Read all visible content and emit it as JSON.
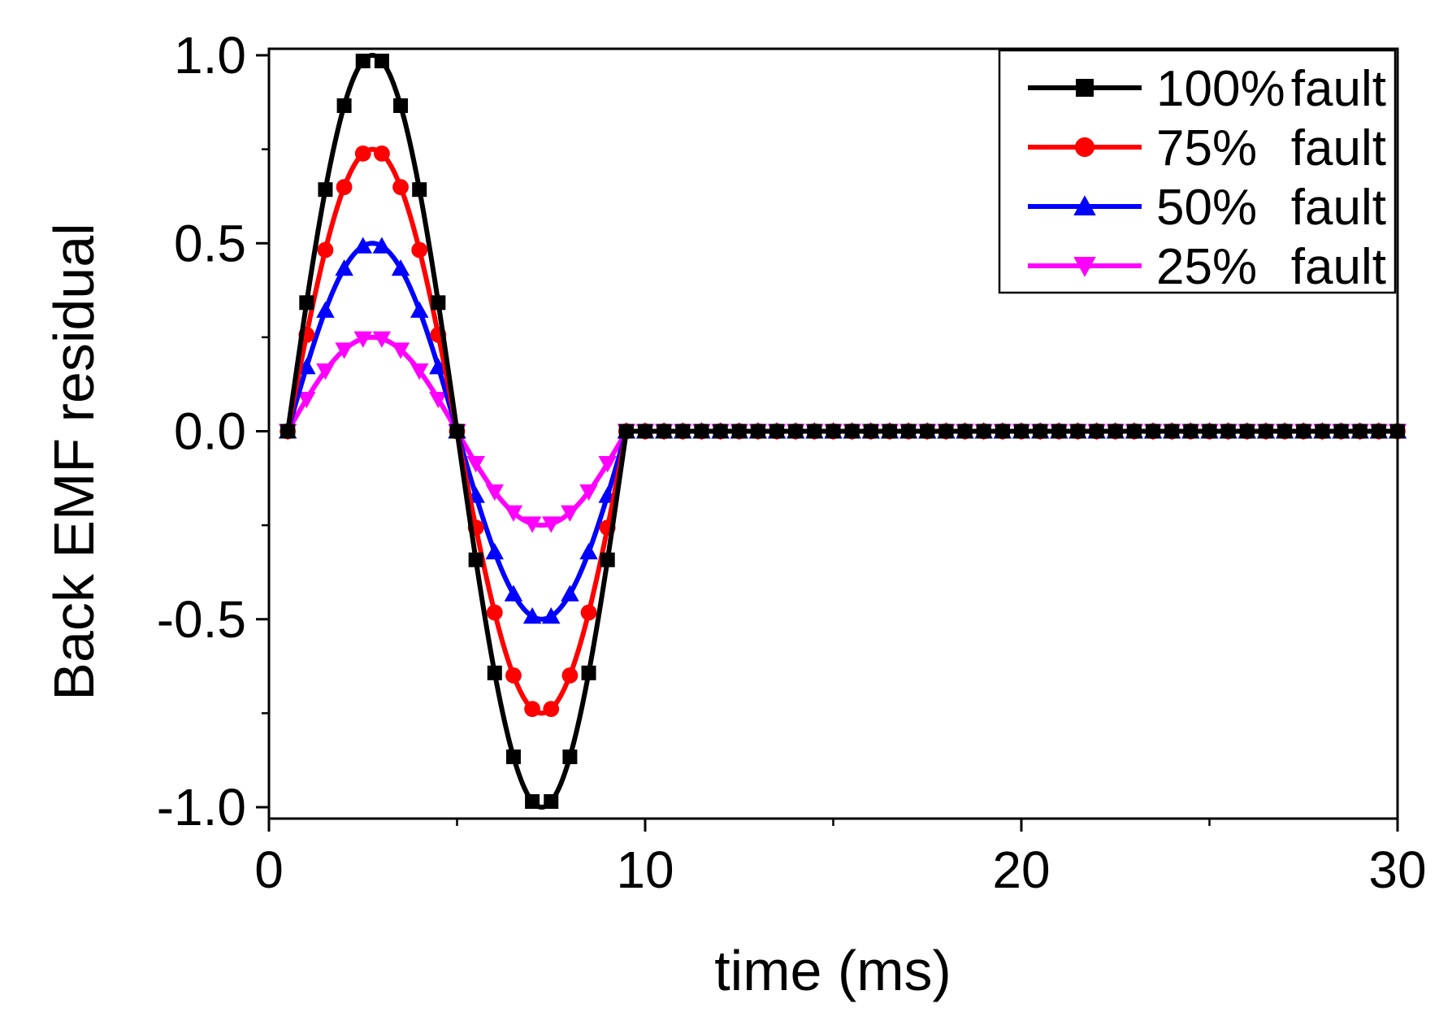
{
  "chart_data": {
    "type": "line",
    "title": "",
    "xlabel": "time (ms)",
    "ylabel": "Back EMF residual",
    "xlim": [
      0,
      30
    ],
    "ylim": [
      -1.0,
      1.0
    ],
    "xticks": [
      0,
      10,
      20,
      30
    ],
    "xtick_labels": [
      "0",
      "10",
      "20",
      "30"
    ],
    "yticks": [
      1.0,
      0.5,
      0.0,
      -0.5,
      -1.0
    ],
    "ytick_labels": [
      "1.0",
      "0.5",
      "0.0",
      "-0.5",
      "-1.0"
    ],
    "grid": false,
    "legend_position": "top-right",
    "waveform": {
      "description_of_values": "y = amplitude * sin(2*pi*(t-0.5)/9) for 0.5 <= t <= 9.5, else 0; sampled every 0.5 ms from 0.5 to 30",
      "start_ms": 0.5,
      "end_ms": 30,
      "step_ms": 0.5,
      "period_ms": 9
    },
    "series": [
      {
        "name": "100% fault",
        "label_pct": "100%",
        "label_word": "fault",
        "amplitude": 1.0,
        "color": "#000000",
        "marker": "square"
      },
      {
        "name": "75% fault",
        "label_pct": "75%",
        "label_word": "fault",
        "amplitude": 0.75,
        "color": "#ff0000",
        "marker": "circle"
      },
      {
        "name": "50% fault",
        "label_pct": "50%",
        "label_word": "fault",
        "amplitude": 0.5,
        "color": "#0000ff",
        "marker": "triangle-up"
      },
      {
        "name": "25% fault",
        "label_pct": "25%",
        "label_word": "fault",
        "amplitude": 0.25,
        "color": "#ff00ff",
        "marker": "triangle-down"
      }
    ]
  }
}
